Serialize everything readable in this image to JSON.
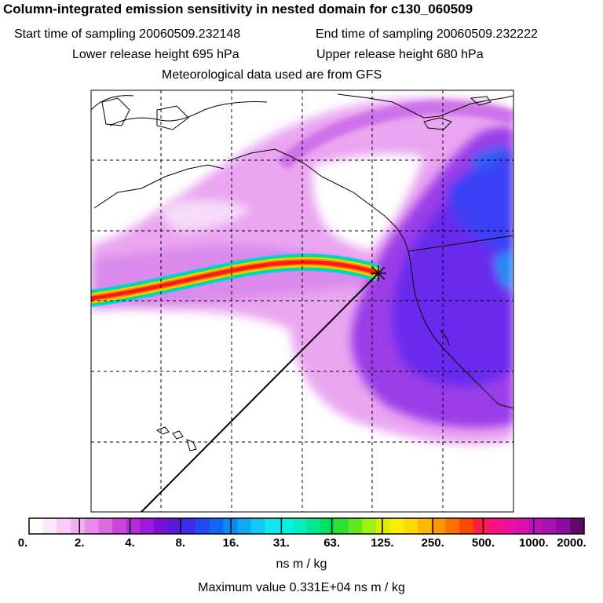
{
  "header": {
    "title": "Column-integrated emission sensitivity in nested domain for c130_060509",
    "start_label": "Start time of sampling 20060509.232148",
    "end_label": "End time of sampling 20060509.232222",
    "lower_label": "Lower release height  695 hPa",
    "upper_label": "Upper release height  680 hPa",
    "met_label": "Meteorological data used are from GFS"
  },
  "colorbar": {
    "tick_labels": [
      "0.",
      "2.",
      "4.",
      "8.",
      "16.",
      "31.",
      "63.",
      "125.",
      "250.",
      "500.",
      "1000.",
      "2000."
    ],
    "colors": [
      "#ffffff",
      "#fbe6fb",
      "#f5cdf5",
      "#f0b0f0",
      "#e78ce8",
      "#dc6ae0",
      "#cc44dc",
      "#b82ad8",
      "#9a1bd8",
      "#7a10d6",
      "#5a18e0",
      "#3c2cf0",
      "#2048f5",
      "#1266f5",
      "#0e88f5",
      "#10a8f5",
      "#10c8f5",
      "#10e6f2",
      "#00f5e0",
      "#00f0c0",
      "#00e890",
      "#00e060",
      "#30e030",
      "#60e820",
      "#a0f010",
      "#d8f000",
      "#f8f000",
      "#ffd800",
      "#ffb800",
      "#ff9800",
      "#ff7000",
      "#ff4800",
      "#ff2040",
      "#ff1080",
      "#f010a0",
      "#d810b0",
      "#c010b8",
      "#a810b0",
      "#8c0ca0",
      "#600868"
    ],
    "units": "ns m / kg"
  },
  "footer": {
    "max_value": "Maximum value  0.331E+04 ns m / kg"
  },
  "colors": {
    "plume_outer": "#e07af0",
    "plume_mid": "#8a2be2",
    "plume_core": "#3b2cf0",
    "track_red": "#ff1a1a",
    "track_yellow": "#ffd000",
    "track_green": "#00e080",
    "track_cyan": "#10d8f5"
  },
  "icons": {
    "release_marker": "star-icon"
  }
}
